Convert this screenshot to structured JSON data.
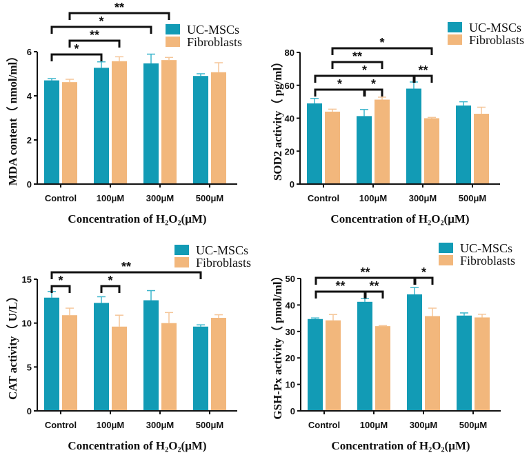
{
  "chart_data": [
    {
      "type": "bar",
      "title": "",
      "xlabel": "Concentration of H₂O₂(μM)",
      "ylabel": "MDA content（ nmol/ml）",
      "categories": [
        "Control",
        "100μM",
        "300μM",
        "500μM"
      ],
      "ylim": [
        0,
        6
      ],
      "yticks": [
        0,
        2,
        4,
        6
      ],
      "legend": "top-right",
      "series": [
        {
          "name": "UC-MSCs",
          "color": "#129bb5",
          "errcolor": "#3bb5cc",
          "values": [
            4.7,
            5.27,
            5.47,
            4.9
          ],
          "errors": [
            0.08,
            0.27,
            0.42,
            0.1
          ]
        },
        {
          "name": "Fibroblasts",
          "color": "#f2b77c",
          "errcolor": "#f5c699",
          "values": [
            4.62,
            5.57,
            5.62,
            5.07
          ],
          "errors": [
            0.13,
            0.2,
            0.12,
            0.43
          ]
        }
      ],
      "significance": [
        {
          "from": [
            0,
            0
          ],
          "to": [
            1,
            0
          ],
          "label": "*",
          "tier": 0
        },
        {
          "from": [
            0,
            1
          ],
          "to": [
            1,
            1
          ],
          "label": "**",
          "tier": 1
        },
        {
          "from": [
            0,
            0
          ],
          "to": [
            2,
            0
          ],
          "label": "*",
          "tier": 2
        },
        {
          "from": [
            0,
            1
          ],
          "to": [
            2,
            1
          ],
          "label": "**",
          "tier": 3
        }
      ]
    },
    {
      "type": "bar",
      "title": "",
      "xlabel": "Concentration of H₂O₂(μM)",
      "ylabel": "SOD2 activity（ pg/ml）",
      "categories": [
        "Control",
        "100μM",
        "300μM",
        "500μM"
      ],
      "ylim": [
        0,
        80
      ],
      "yticks": [
        0,
        20,
        40,
        60,
        80
      ],
      "legend": "top-right",
      "series": [
        {
          "name": "UC-MSCs",
          "color": "#129bb5",
          "errcolor": "#3bb5cc",
          "values": [
            49,
            41.3,
            58,
            47.7
          ],
          "errors": [
            3,
            4,
            4,
            2.3
          ]
        },
        {
          "name": "Fibroblasts",
          "color": "#f2b77c",
          "errcolor": "#f5c699",
          "values": [
            44,
            51.3,
            40,
            42.7
          ],
          "errors": [
            1.5,
            1.5,
            0.5,
            4
          ]
        }
      ],
      "significance": [
        {
          "from": [
            0,
            0
          ],
          "to": [
            1,
            0
          ],
          "label": "*",
          "tier": 0
        },
        {
          "from": [
            1,
            0
          ],
          "to": [
            1,
            1
          ],
          "label": "*",
          "tier": 0
        },
        {
          "from": [
            0,
            0
          ],
          "to": [
            2,
            0
          ],
          "label": "*",
          "tier": 1
        },
        {
          "from": [
            2,
            0
          ],
          "to": [
            2,
            1
          ],
          "label": "**",
          "tier": 1
        },
        {
          "from": [
            0,
            1
          ],
          "to": [
            1,
            1
          ],
          "label": "**",
          "tier": 2
        },
        {
          "from": [
            0,
            1
          ],
          "to": [
            2,
            1
          ],
          "label": "*",
          "tier": 3
        }
      ]
    },
    {
      "type": "bar",
      "title": "",
      "xlabel": "Concentration of H₂O₂(μM)",
      "ylabel": "CAT activity（ U/L）",
      "categories": [
        "Control",
        "100μM",
        "300μM",
        "500μM"
      ],
      "ylim": [
        0,
        15
      ],
      "yticks": [
        0,
        5,
        10,
        15
      ],
      "legend": "top-right",
      "series": [
        {
          "name": "UC-MSCs",
          "color": "#129bb5",
          "errcolor": "#3bb5cc",
          "values": [
            12.9,
            12.3,
            12.6,
            9.6
          ],
          "errors": [
            0.7,
            0.7,
            1.1,
            0.2
          ]
        },
        {
          "name": "Fibroblasts",
          "color": "#f2b77c",
          "errcolor": "#f5c699",
          "values": [
            10.9,
            9.6,
            10.0,
            10.6
          ],
          "errors": [
            0.8,
            1.3,
            1.2,
            0.35
          ]
        }
      ],
      "significance": [
        {
          "from": [
            0,
            0
          ],
          "to": [
            0,
            1
          ],
          "label": "*",
          "tier": 0
        },
        {
          "from": [
            1,
            0
          ],
          "to": [
            1,
            1
          ],
          "label": "*",
          "tier": 0
        },
        {
          "from": [
            0,
            0
          ],
          "to": [
            3,
            0
          ],
          "label": "**",
          "tier": 1
        }
      ]
    },
    {
      "type": "bar",
      "title": "",
      "xlabel": "Concentration of H₂O₂(μM)",
      "ylabel": "GSH-Px activity（ pmol/ml）",
      "categories": [
        "Control",
        "100μM",
        "300μM",
        "500μM"
      ],
      "ylim": [
        0,
        50
      ],
      "yticks": [
        0,
        10,
        20,
        30,
        40,
        50
      ],
      "legend": "top-right",
      "series": [
        {
          "name": "UC-MSCs",
          "color": "#129bb5",
          "errcolor": "#3bb5cc",
          "values": [
            34.7,
            41.2,
            44,
            36
          ],
          "errors": [
            0.4,
            1.2,
            2.6,
            1
          ]
        },
        {
          "name": "Fibroblasts",
          "color": "#f2b77c",
          "errcolor": "#f5c699",
          "values": [
            34.2,
            32,
            35.8,
            35.3
          ],
          "errors": [
            2.2,
            0.2,
            3,
            1.2
          ]
        }
      ],
      "significance": [
        {
          "from": [
            0,
            0
          ],
          "to": [
            1,
            0
          ],
          "label": "**",
          "tier": 0
        },
        {
          "from": [
            1,
            0
          ],
          "to": [
            1,
            1
          ],
          "label": "**",
          "tier": 0
        },
        {
          "from": [
            0,
            0
          ],
          "to": [
            2,
            0
          ],
          "label": "**",
          "tier": 1
        },
        {
          "from": [
            2,
            0
          ],
          "to": [
            2,
            1
          ],
          "label": "*",
          "tier": 1
        }
      ]
    }
  ]
}
